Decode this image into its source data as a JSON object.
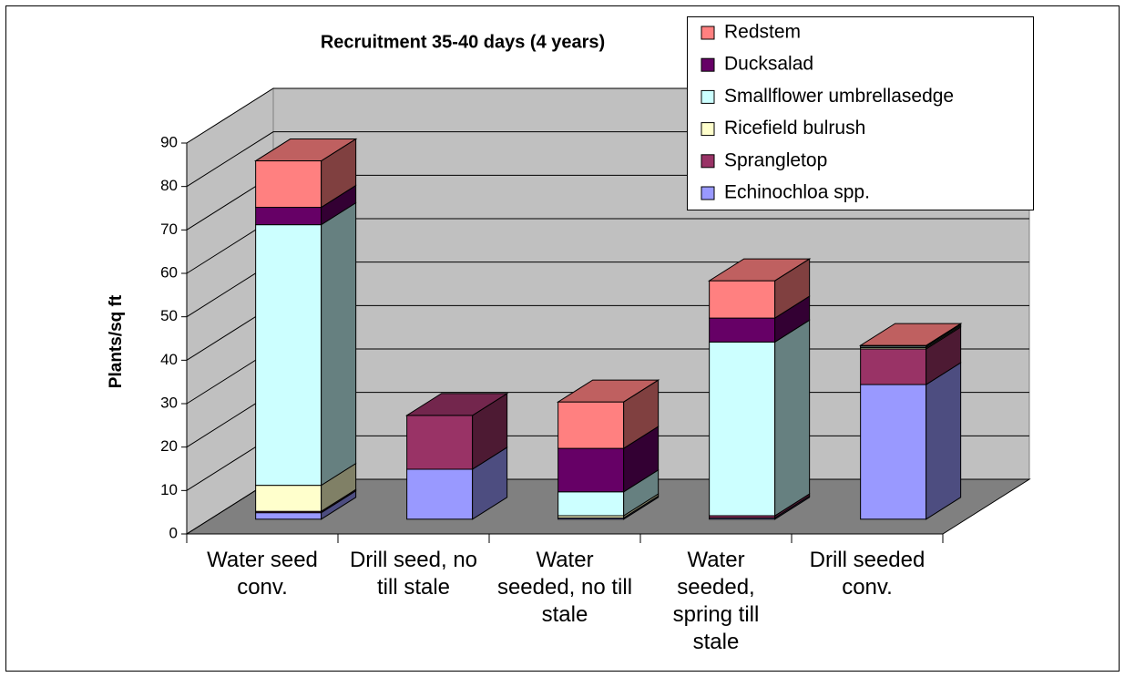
{
  "chart_data": {
    "type": "bar3d_stacked",
    "title": "Recruitment 35-40 days (4 years)",
    "y_label": "Plants/sq ft",
    "categories": [
      "Water seed conv.",
      "Drill seed, no till stale",
      "Water seeded, no till stale",
      "Water seeded, spring till stale",
      "Drill seeded conv."
    ],
    "series": [
      {
        "name": "Echinochloa spp.",
        "color": "#9999ff",
        "values": [
          1.5,
          11.5,
          0.3,
          0.3,
          31
        ]
      },
      {
        "name": "Sprangletop",
        "color": "#993366",
        "values": [
          0.3,
          12.4,
          0,
          0.5,
          8.2
        ]
      },
      {
        "name": "Ricefield bulrush",
        "color": "#ffffcc",
        "values": [
          6,
          0,
          0.5,
          0,
          0.3
        ]
      },
      {
        "name": "Smallflower umbrellasedge",
        "color": "#ccffff",
        "values": [
          60,
          0,
          5.5,
          40,
          0.3
        ]
      },
      {
        "name": "Ducksalad",
        "color": "#660066",
        "values": [
          4,
          0,
          10,
          5.5,
          0
        ]
      },
      {
        "name": "Redstem",
        "color": "#ff8080",
        "values": [
          10.7,
          0,
          10.7,
          8.6,
          0.2
        ]
      }
    ],
    "ylim": [
      0,
      90
    ],
    "yticks": [
      0,
      10,
      20,
      30,
      40,
      50,
      60,
      70,
      80,
      90
    ],
    "grid": true
  }
}
